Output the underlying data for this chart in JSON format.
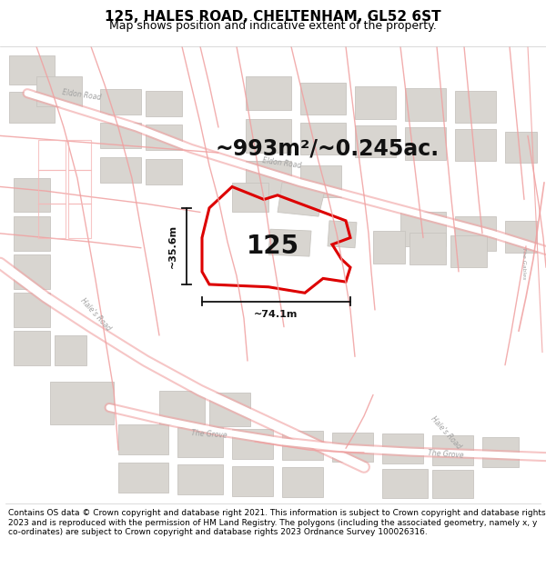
{
  "title_line1": "125, HALES ROAD, CHELTENHAM, GL52 6ST",
  "title_line2": "Map shows position and indicative extent of the property.",
  "footer": "Contains OS data © Crown copyright and database right 2021. This information is subject to Crown copyright and database rights 2023 and is reproduced with the permission of HM Land Registry. The polygons (including the associated geometry, namely x, y co-ordinates) are subject to Crown copyright and database rights 2023 Ordnance Survey 100026316.",
  "area_text": "~993m²/~0.245ac.",
  "number_label": "125",
  "dim_width": "~74.1m",
  "dim_height": "~35.6m",
  "map_bg": "#ffffff",
  "road_outline_color": "#f0a0a0",
  "road_fill_color": "#ffffff",
  "plot_line_color": "#f5b8b8",
  "building_color": "#d8d5d0",
  "building_edge": "#c8c5c0",
  "property_color": "#dd0000",
  "dim_color": "#111111",
  "label_color": "#aaaaaa",
  "title_fontsize": 11,
  "subtitle_fontsize": 9,
  "footer_fontsize": 6.5,
  "area_fontsize": 17,
  "number_fontsize": 20,
  "figsize": [
    6.0,
    6.25
  ],
  "dpi": 100
}
